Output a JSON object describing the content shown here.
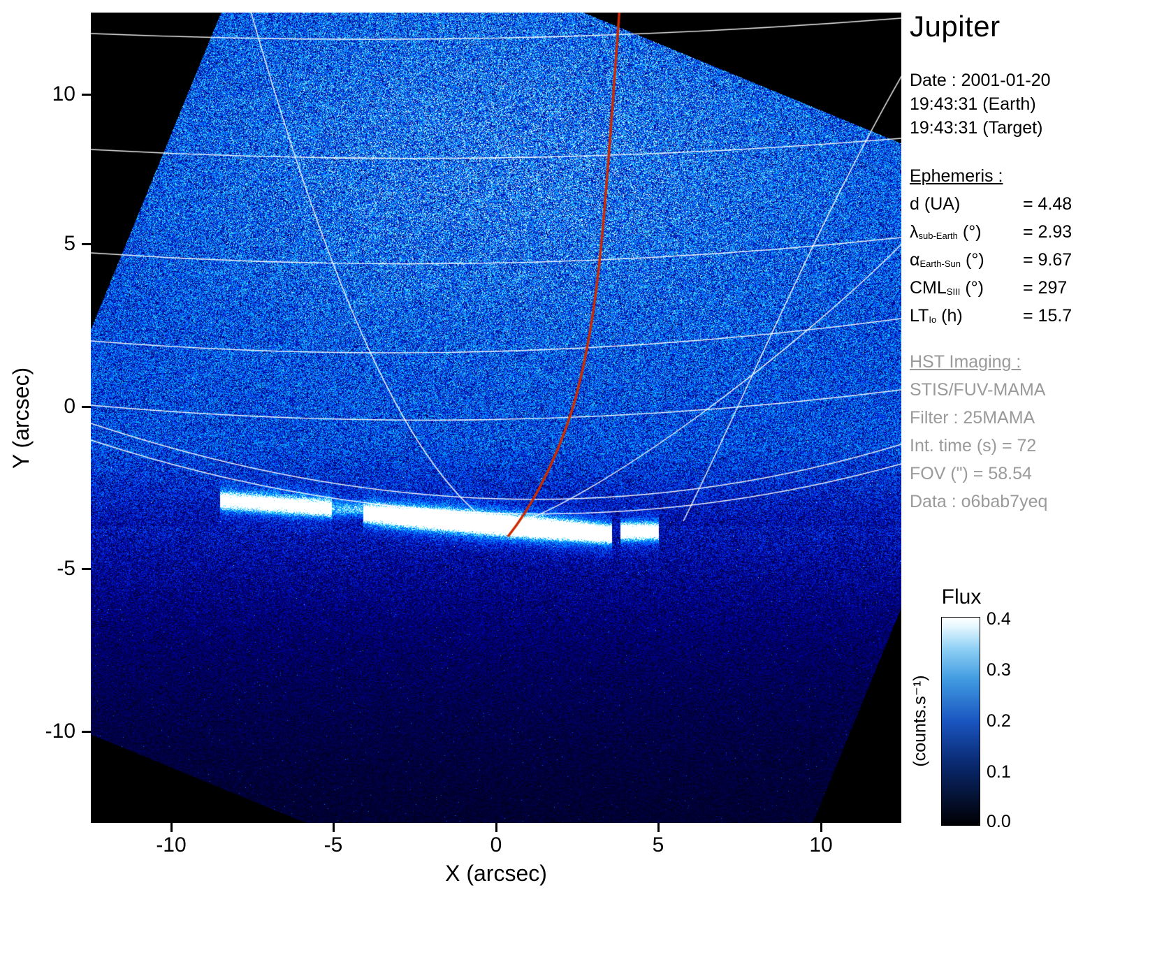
{
  "title": "Jupiter",
  "axes": {
    "xlabel": "X (arcsec)",
    "ylabel": "Y (arcsec)",
    "xticks": [
      "-10",
      "-5",
      "0",
      "5",
      "10"
    ],
    "yticks": [
      "10",
      "5",
      "0",
      "-5",
      "-10"
    ]
  },
  "info": {
    "date": "Date : 2001-01-20",
    "time_earth": "19:43:31 (Earth)",
    "time_target": "19:43:31 (Target)",
    "ephemeris_heading": "Ephemeris :",
    "ephemeris": [
      {
        "symbol": "d",
        "sub": "",
        "unit": "(UA)",
        "value": "= 4.48"
      },
      {
        "symbol": "λ",
        "sub": "sub-Earth",
        "unit": "(°)",
        "value": "= 2.93"
      },
      {
        "symbol": "α",
        "sub": "Earth-Sun",
        "unit": "(°)",
        "value": "= 9.67"
      },
      {
        "symbol": "CML",
        "sub": "SIII",
        "unit": "(°)",
        "value": "= 297"
      },
      {
        "symbol": "LT",
        "sub": "Io",
        "unit": "(h)",
        "value": "= 15.7"
      }
    ],
    "hst_heading": "HST Imaging :",
    "hst": [
      "STIS/FUV-MAMA",
      "Filter : 25MAMA",
      "Int. time (s) = 72",
      "FOV (\") = 58.54",
      "Data : o6bab7yeq"
    ]
  },
  "colorbar": {
    "title": "Flux",
    "unit": "(counts.s⁻¹)",
    "ticks": [
      "0.4",
      "0.3",
      "0.2",
      "0.1",
      "0.0"
    ]
  },
  "chart_data": {
    "type": "heatmap",
    "title": "Jupiter",
    "xlabel": "X (arcsec)",
    "ylabel": "Y (arcsec)",
    "xlim": [
      -12.5,
      12.5
    ],
    "ylim": [
      -12.5,
      12.5
    ],
    "xticks": [
      -10,
      -5,
      0,
      5,
      10
    ],
    "yticks": [
      10,
      5,
      0,
      -5,
      -10
    ],
    "grid": "white planetary latitude/longitude graticule overlaid",
    "colorbar": {
      "label": "Flux",
      "unit": "(counts.s⁻¹)",
      "range": [
        0.0,
        0.4
      ],
      "ticks": [
        0.0,
        0.1,
        0.2,
        0.3,
        0.4
      ],
      "colormap": "black → dark blue → blue → light blue → white"
    },
    "features": {
      "detector_field": "rotated square STIS/FUV-MAMA field filled with blue photon-noise; corners of plot outside field are black",
      "diffuse_glow": {
        "region_y": [
          2,
          12
        ],
        "flux_approx": 0.18
      },
      "auroral_main_arc": {
        "x_range": [
          -8.4,
          2.6
        ],
        "y_range": [
          -2.6,
          -4.0
        ],
        "peak_flux": 0.4
      },
      "secondary_spot": {
        "x": 4.3,
        "y": -3.8,
        "flux_approx": 0.35
      },
      "red_curve": {
        "color": "#cc2a00",
        "from_xy": [
          3.8,
          12.5
        ],
        "to_xy": [
          0.6,
          -3.6
        ],
        "meaning": "overlaid footprint trajectory"
      }
    }
  }
}
